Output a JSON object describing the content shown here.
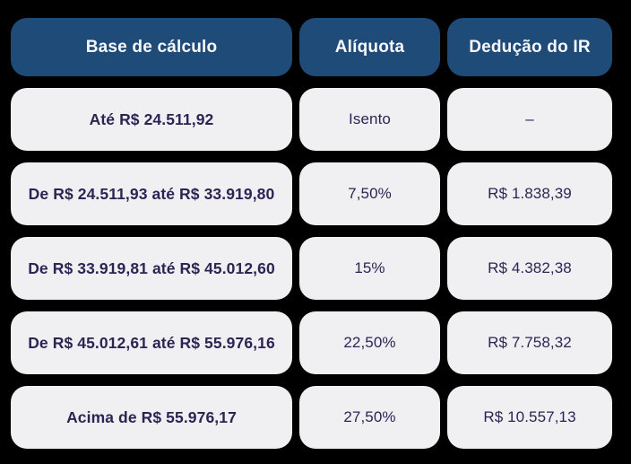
{
  "page": {
    "background_color": "#000000"
  },
  "colors": {
    "header_pill_bg": "#1F4B79",
    "header_pill_text": "#F7F8FC",
    "cell_pill_bg": "#F0F0F2",
    "cell_text": "#2E2454"
  },
  "chart_data": {
    "type": "table",
    "columns": [
      "Base de cálculo",
      "Alíquota",
      "Dedução do IR"
    ],
    "rows": [
      [
        "Até R$ 24.511,92",
        "Isento",
        "–"
      ],
      [
        "De R$ 24.511,93 até R$ 33.919,80",
        "7,50%",
        "R$ 1.838,39"
      ],
      [
        "De R$ 33.919,81 até R$ 45.012,60",
        "15%",
        "R$ 4.382,38"
      ],
      [
        "De R$ 45.012,61 até R$ 55.976,16",
        "22,50%",
        "R$ 7.758,32"
      ],
      [
        "Acima de R$ 55.976,17",
        "27,50%",
        "R$ 10.557,13"
      ]
    ]
  }
}
